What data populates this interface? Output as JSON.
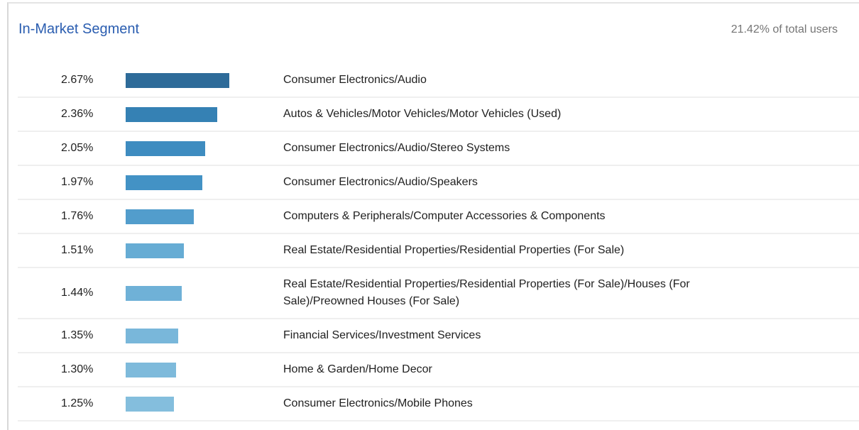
{
  "header": {
    "title": "In-Market Segment",
    "total_users": "21.42% of total users"
  },
  "colors": {
    "title_blue": "#2a5db0",
    "subtitle_gray": "#757575",
    "row_text": "#1f1f1f",
    "separator": "#efefef",
    "card_border_top": "#e4e4e4",
    "card_border_left": "#d8d8d8"
  },
  "chart_data": {
    "type": "bar",
    "orientation": "horizontal",
    "title": "In-Market Segment",
    "annotation": "21.42% of total users",
    "categories": [
      "Consumer Electronics/Audio",
      "Autos & Vehicles/Motor Vehicles/Motor Vehicles (Used)",
      "Consumer Electronics/Audio/Stereo Systems",
      "Consumer Electronics/Audio/Speakers",
      "Computers & Peripherals/Computer Accessories & Components",
      "Real Estate/Residential Properties/Residential Properties (For Sale)",
      "Real Estate/Residential Properties/Residential Properties (For Sale)/Houses (For Sale)/Preowned Houses (For Sale)",
      "Financial Services/Investment Services",
      "Home & Garden/Home Decor",
      "Consumer Electronics/Mobile Phones"
    ],
    "values": [
      2.67,
      2.36,
      2.05,
      1.97,
      1.76,
      1.51,
      1.44,
      1.35,
      1.3,
      1.25
    ],
    "value_labels": [
      "2.67%",
      "2.36%",
      "2.05%",
      "1.97%",
      "1.76%",
      "1.51%",
      "1.44%",
      "1.35%",
      "1.30%",
      "1.25%"
    ],
    "bar_colors": [
      "#2e6b99",
      "#3581b4",
      "#3e8cc0",
      "#4392c5",
      "#529dcc",
      "#66acd4",
      "#6fb1d7",
      "#79b7da",
      "#7ebadb",
      "#84bedd"
    ],
    "xlim": [
      0,
      2.75
    ],
    "grid": false,
    "legend": false
  }
}
